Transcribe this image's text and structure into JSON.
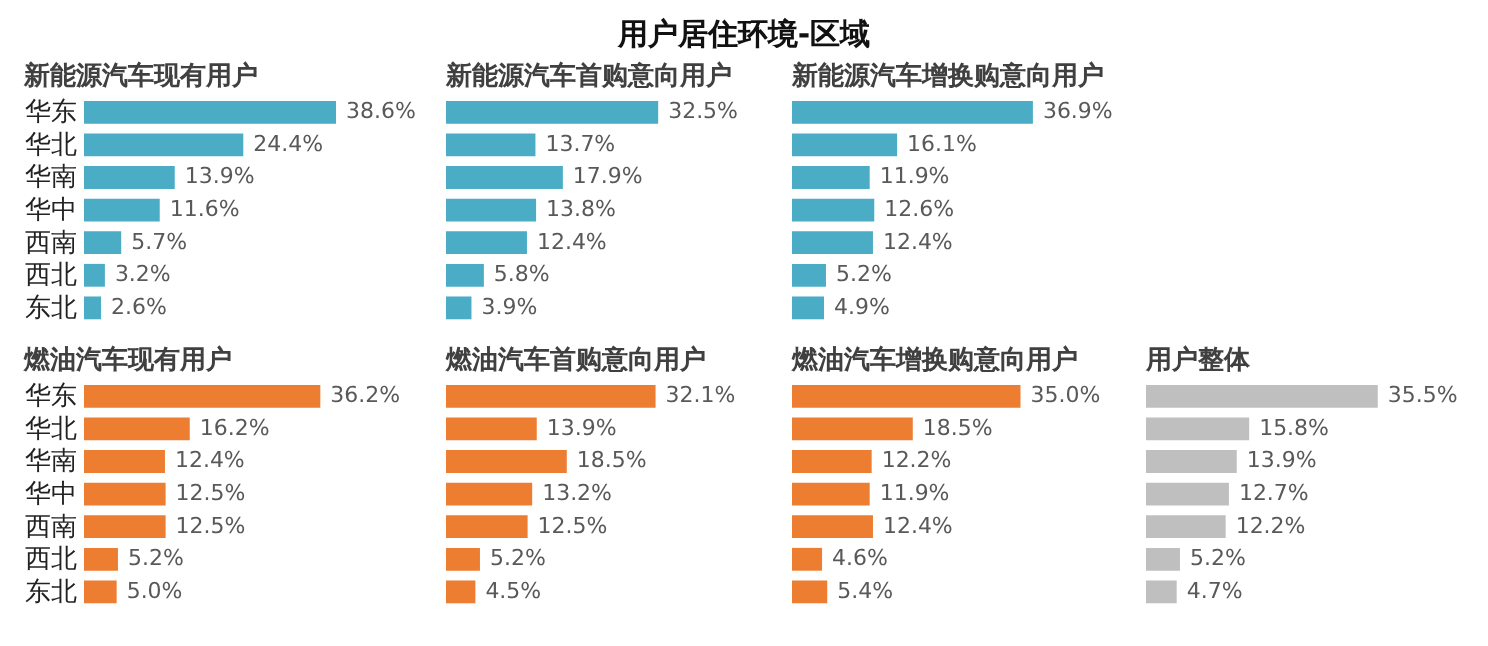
{
  "chart_data": [
    {
      "type": "other",
      "title": "用户居住环境-区域"
    },
    {
      "type": "bar",
      "orientation": "horizontal",
      "title": "新能源汽车现有用户",
      "categories": [
        "华东",
        "华北",
        "华南",
        "华中",
        "西南",
        "西北",
        "东北"
      ],
      "values": [
        38.6,
        24.4,
        13.9,
        11.6,
        5.7,
        3.2,
        2.6
      ],
      "value_labels": [
        "38.6%",
        "24.4%",
        "13.9%",
        "11.6%",
        "5.7%",
        "3.2%",
        "2.6%"
      ],
      "color": "#4bacc6"
    },
    {
      "type": "bar",
      "orientation": "horizontal",
      "title": "新能源汽车首购意向用户",
      "categories": [
        null,
        null,
        null,
        null,
        null,
        null,
        null
      ],
      "values": [
        32.5,
        13.7,
        17.9,
        13.8,
        12.4,
        5.8,
        3.9
      ],
      "value_labels": [
        "32.5%",
        "13.7%",
        "17.9%",
        "13.8%",
        "12.4%",
        "5.8%",
        "3.9%"
      ],
      "color": "#4bacc6"
    },
    {
      "type": "bar",
      "orientation": "horizontal",
      "title": "新能源汽车增换购意向用户",
      "categories": [
        null,
        null,
        null,
        null,
        null,
        null,
        null
      ],
      "values": [
        36.9,
        16.1,
        11.9,
        12.6,
        12.4,
        5.2,
        4.9
      ],
      "value_labels": [
        "36.9%",
        "16.1%",
        "11.9%",
        "12.6%",
        "12.4%",
        "5.2%",
        "4.9%"
      ],
      "color": "#4bacc6"
    },
    {
      "type": "bar",
      "orientation": "horizontal",
      "title": "燃油汽车现有用户",
      "categories": [
        "华东",
        "华北",
        "华南",
        "华中",
        "西南",
        "西北",
        "东北"
      ],
      "values": [
        36.2,
        16.2,
        12.4,
        12.5,
        12.5,
        5.2,
        5.0
      ],
      "value_labels": [
        "36.2%",
        "16.2%",
        "12.4%",
        "12.5%",
        "12.5%",
        "5.2%",
        "5.0%"
      ],
      "color": "#ed7d31"
    },
    {
      "type": "bar",
      "orientation": "horizontal",
      "title": "燃油汽车首购意向用户",
      "categories": [
        null,
        null,
        null,
        null,
        null,
        null,
        null
      ],
      "values": [
        32.1,
        13.9,
        18.5,
        13.2,
        12.5,
        5.2,
        4.5
      ],
      "value_labels": [
        "32.1%",
        "13.9%",
        "18.5%",
        "13.2%",
        "12.5%",
        "5.2%",
        "4.5%"
      ],
      "color": "#ed7d31"
    },
    {
      "type": "bar",
      "orientation": "horizontal",
      "title": "燃油汽车增换购意向用户",
      "categories": [
        null,
        null,
        null,
        null,
        null,
        null,
        null
      ],
      "values": [
        35.0,
        18.5,
        12.2,
        11.9,
        12.4,
        4.6,
        5.4
      ],
      "value_labels": [
        "35.0%",
        "18.5%",
        "12.2%",
        "11.9%",
        "12.4%",
        "4.6%",
        "5.4%"
      ],
      "color": "#ed7d31"
    },
    {
      "type": "bar",
      "orientation": "horizontal",
      "title": "用户整体",
      "categories": [
        null,
        null,
        null,
        null,
        null,
        null,
        null
      ],
      "values": [
        35.5,
        15.8,
        13.9,
        12.7,
        12.2,
        5.2,
        4.7
      ],
      "value_labels": [
        "35.5%",
        "15.8%",
        "13.9%",
        "12.7%",
        "12.2%",
        "5.2%",
        "4.7%"
      ],
      "color": "#bfbfbf"
    }
  ]
}
